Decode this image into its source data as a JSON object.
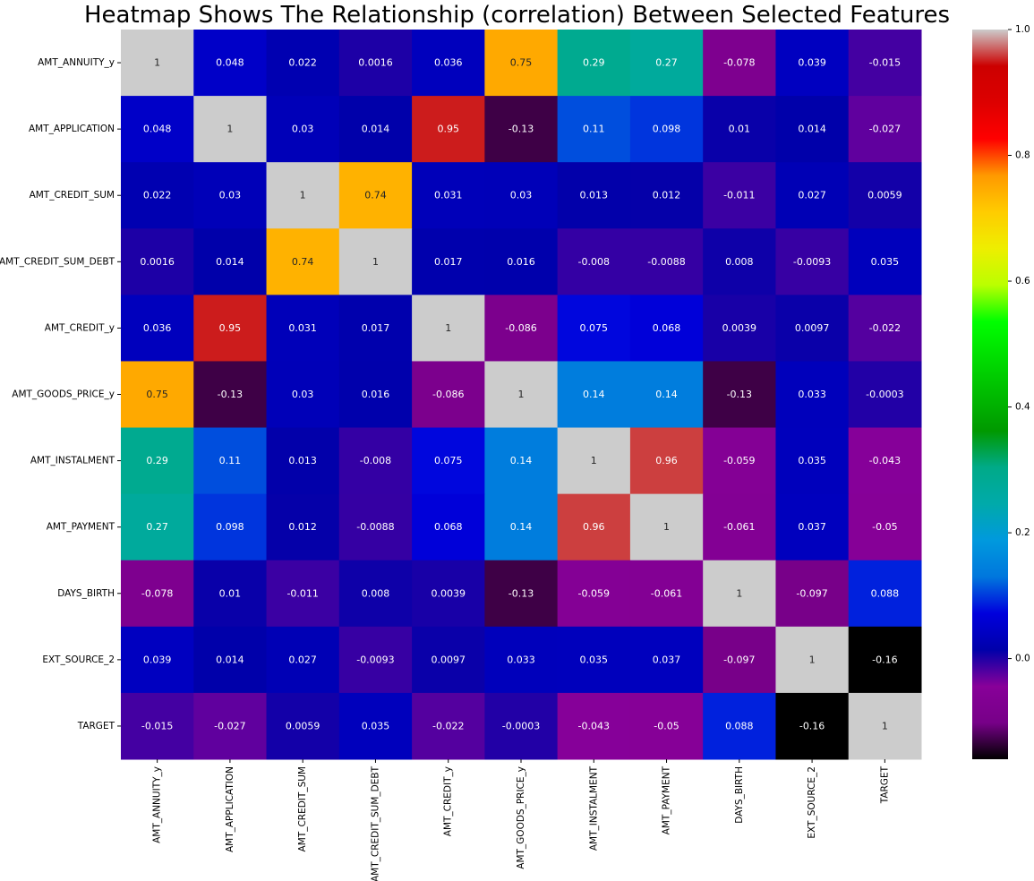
{
  "chart_data": {
    "type": "heatmap",
    "title": "Heatmap Shows The Relationship (correlation) Between Selected Features",
    "rows": [
      "AMT_ANNUITY_y",
      "AMT_APPLICATION",
      "AMT_CREDIT_SUM",
      "AMT_CREDIT_SUM_DEBT",
      "AMT_CREDIT_y",
      "AMT_GOODS_PRICE_y",
      "AMT_INSTALMENT",
      "AMT_PAYMENT",
      "DAYS_BIRTH",
      "EXT_SOURCE_2",
      "TARGET"
    ],
    "columns": [
      "AMT_ANNUITY_y",
      "AMT_APPLICATION",
      "AMT_CREDIT_SUM",
      "AMT_CREDIT_SUM_DEBT",
      "AMT_CREDIT_y",
      "AMT_GOODS_PRICE_y",
      "AMT_INSTALMENT",
      "AMT_PAYMENT",
      "DAYS_BIRTH",
      "EXT_SOURCE_2",
      "TARGET"
    ],
    "values": [
      [
        1,
        0.048,
        0.022,
        0.0016,
        0.036,
        0.75,
        0.29,
        0.27,
        -0.078,
        0.039,
        -0.015
      ],
      [
        0.048,
        1,
        0.03,
        0.014,
        0.95,
        -0.13,
        0.11,
        0.098,
        0.01,
        0.014,
        -0.027
      ],
      [
        0.022,
        0.03,
        1,
        0.74,
        0.031,
        0.03,
        0.013,
        0.012,
        -0.011,
        0.027,
        0.0059
      ],
      [
        0.0016,
        0.014,
        0.74,
        1,
        0.017,
        0.016,
        -0.008,
        -0.0088,
        0.008,
        -0.0093,
        0.035
      ],
      [
        0.036,
        0.95,
        0.031,
        0.017,
        1,
        -0.086,
        0.075,
        0.068,
        0.0039,
        0.0097,
        -0.022
      ],
      [
        0.75,
        -0.13,
        0.03,
        0.016,
        -0.086,
        1,
        0.14,
        0.14,
        -0.13,
        0.033,
        -0.0003
      ],
      [
        0.29,
        0.11,
        0.013,
        -0.008,
        0.075,
        0.14,
        1,
        0.96,
        -0.059,
        0.035,
        -0.043
      ],
      [
        0.27,
        0.098,
        0.012,
        -0.0088,
        0.068,
        0.14,
        0.96,
        1,
        -0.061,
        0.037,
        -0.05
      ],
      [
        -0.078,
        0.01,
        -0.011,
        0.008,
        0.0039,
        -0.13,
        -0.059,
        -0.061,
        1,
        -0.097,
        0.088
      ],
      [
        0.039,
        0.014,
        0.027,
        -0.0093,
        0.0097,
        0.033,
        0.035,
        0.037,
        -0.097,
        1,
        -0.16
      ],
      [
        -0.015,
        -0.027,
        0.0059,
        0.035,
        -0.022,
        -0.0003,
        -0.043,
        -0.05,
        0.088,
        -0.16,
        1
      ]
    ],
    "value_labels": [
      [
        "1",
        "0.048",
        "0.022",
        "0.0016",
        "0.036",
        "0.75",
        "0.29",
        "0.27",
        "-0.078",
        "0.039",
        "-0.015"
      ],
      [
        "0.048",
        "1",
        "0.03",
        "0.014",
        "0.95",
        "-0.13",
        "0.11",
        "0.098",
        "0.01",
        "0.014",
        "-0.027"
      ],
      [
        "0.022",
        "0.03",
        "1",
        "0.74",
        "0.031",
        "0.03",
        "0.013",
        "0.012",
        "-0.011",
        "0.027",
        "0.0059"
      ],
      [
        "0.0016",
        "0.014",
        "0.74",
        "1",
        "0.017",
        "0.016",
        "-0.008",
        "-0.0088",
        "0.008",
        "-0.0093",
        "0.035"
      ],
      [
        "0.036",
        "0.95",
        "0.031",
        "0.017",
        "1",
        "-0.086",
        "0.075",
        "0.068",
        "0.0039",
        "0.0097",
        "-0.022"
      ],
      [
        "0.75",
        "-0.13",
        "0.03",
        "0.016",
        "-0.086",
        "1",
        "0.14",
        "0.14",
        "-0.13",
        "0.033",
        "-0.0003"
      ],
      [
        "0.29",
        "0.11",
        "0.013",
        "-0.008",
        "0.075",
        "0.14",
        "1",
        "0.96",
        "-0.059",
        "0.035",
        "-0.043"
      ],
      [
        "0.27",
        "0.098",
        "0.012",
        "-0.0088",
        "0.068",
        "0.14",
        "0.96",
        "1",
        "-0.061",
        "0.037",
        "-0.05"
      ],
      [
        "-0.078",
        "0.01",
        "-0.011",
        "0.008",
        "0.0039",
        "-0.13",
        "-0.059",
        "-0.061",
        "1",
        "-0.097",
        "0.088"
      ],
      [
        "0.039",
        "0.014",
        "0.027",
        "-0.0093",
        "0.0097",
        "0.033",
        "0.035",
        "0.037",
        "-0.097",
        "1",
        "-0.16"
      ],
      [
        "-0.015",
        "-0.027",
        "0.0059",
        "0.035",
        "-0.022",
        "-0.0003",
        "-0.043",
        "-0.05",
        "0.088",
        "-0.16",
        "1"
      ]
    ],
    "colorbar": {
      "colormap": "nipy_spectral",
      "range": [
        -0.16,
        1.0
      ],
      "ticks": [
        0.0,
        0.2,
        0.4,
        0.6,
        0.8,
        1.0
      ],
      "tick_labels": [
        "0.0",
        "0.2",
        "0.4",
        "0.6",
        "0.8",
        "1.0"
      ]
    },
    "grid": false,
    "annotated": true
  }
}
